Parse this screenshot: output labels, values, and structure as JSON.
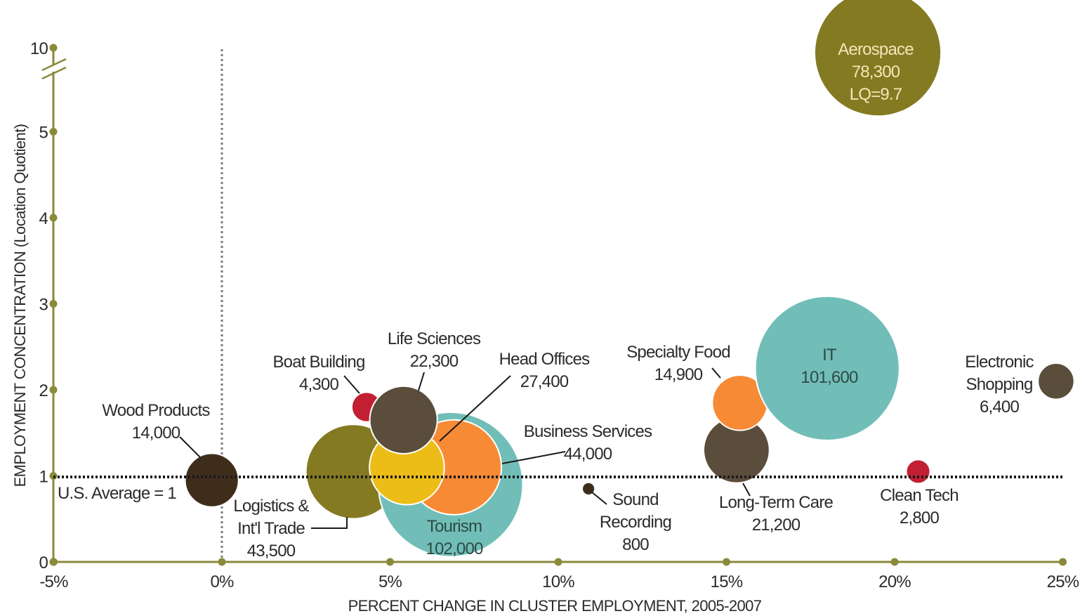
{
  "chart_data": {
    "type": "scatter",
    "subtype": "bubble",
    "xlabel": "PERCENT CHANGE IN CLUSTER EMPLOYMENT, 2005-2007",
    "ylabel": "EMPLOYMENT CONCENTRATION (Location Quotient)",
    "xlim": [
      -5,
      25
    ],
    "ylim": [
      0,
      10
    ],
    "y_axis_break": "between 5 and 10",
    "x_ticks": [
      "-5%",
      "0%",
      "5%",
      "10%",
      "15%",
      "20%",
      "25%"
    ],
    "y_ticks": [
      "0",
      "1",
      "2",
      "3",
      "4",
      "5",
      "10"
    ],
    "reference_line": {
      "y": 1,
      "label": "U.S. Average = 1"
    },
    "colors": {
      "axis": "#8a8a3a",
      "olive": "#847a22",
      "dark_brown": "#4a3a25",
      "brown": "#5b4d3b",
      "teal": "#71beb8",
      "orange": "#f78a35",
      "yellow": "#ecbd17",
      "red": "#c21f32"
    },
    "points": [
      {
        "name": "Wood Products",
        "employment": "14,000",
        "x": -0.3,
        "y": 0.95,
        "employment_value": 14000,
        "color": "#3f2d1c"
      },
      {
        "name": "Logistics & Int'l Trade",
        "employment": "43,500",
        "x": 3.9,
        "y": 1.05,
        "employment_value": 43500,
        "color": "#847a22"
      },
      {
        "name": "Boat Building",
        "employment": "4,300",
        "x": 4.3,
        "y": 1.8,
        "employment_value": 4300,
        "color": "#c21f32"
      },
      {
        "name": "Tourism",
        "employment": "102,000",
        "x": 6.8,
        "y": 0.9,
        "employment_value": 102000,
        "color": "#71beb8"
      },
      {
        "name": "Business Services",
        "employment": "44,000",
        "x": 6.9,
        "y": 1.1,
        "employment_value": 44000,
        "color": "#f78a35"
      },
      {
        "name": "Head Offices",
        "employment": "27,400",
        "x": 5.5,
        "y": 1.1,
        "employment_value": 27400,
        "color": "#ecbd17"
      },
      {
        "name": "Life Sciences",
        "employment": "22,300",
        "x": 5.4,
        "y": 1.65,
        "employment_value": 22300,
        "color": "#5b4d3b"
      },
      {
        "name": "Sound Recording",
        "employment": "800",
        "x": 10.9,
        "y": 0.85,
        "employment_value": 800,
        "color": "#3f2d1c"
      },
      {
        "name": "Long-Term Care",
        "employment": "21,200",
        "x": 15.3,
        "y": 1.3,
        "employment_value": 21200,
        "color": "#5b4d3b"
      },
      {
        "name": "Specialty Food",
        "employment": "14,900",
        "x": 15.4,
        "y": 1.85,
        "employment_value": 14900,
        "color": "#f78a35"
      },
      {
        "name": "IT",
        "employment": "101,600",
        "x": 18.0,
        "y": 2.25,
        "employment_value": 101600,
        "color": "#71beb8"
      },
      {
        "name": "Clean Tech",
        "employment": "2,800",
        "x": 20.7,
        "y": 1.05,
        "employment_value": 2800,
        "color": "#c21f32"
      },
      {
        "name": "Electronic Shopping",
        "employment": "6,400",
        "x": 24.8,
        "y": 2.1,
        "employment_value": 6400,
        "color": "#5b4d3b"
      },
      {
        "name": "Aerospace",
        "employment": "78,300",
        "lq_text": "LQ=9.7",
        "x": 19.5,
        "y": 9.7,
        "employment_value": 78300,
        "color": "#847a22"
      }
    ]
  }
}
